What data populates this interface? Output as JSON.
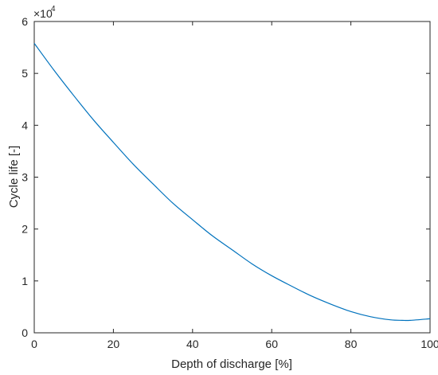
{
  "chart_data": {
    "type": "line",
    "xlabel": "Depth of discharge [%]",
    "ylabel": "Cycle life [-]",
    "xlim": [
      0,
      100
    ],
    "ylim": [
      0,
      6
    ],
    "y_exponent_base": "×10",
    "y_exponent_power": "4",
    "grid": false,
    "xticks": [
      "0",
      "20",
      "40",
      "60",
      "80",
      "100"
    ],
    "yticks": [
      "0",
      "1",
      "2",
      "3",
      "4",
      "5",
      "6"
    ],
    "series": [
      {
        "color": "#0072BD",
        "x": [
          0,
          5,
          10,
          15,
          20,
          25,
          30,
          35,
          40,
          45,
          50,
          55,
          60,
          65,
          70,
          75,
          80,
          85,
          90,
          93,
          95,
          100
        ],
        "y": [
          5.58,
          5.06,
          4.57,
          4.1,
          3.67,
          3.25,
          2.87,
          2.5,
          2.18,
          1.87,
          1.6,
          1.33,
          1.1,
          0.9,
          0.71,
          0.55,
          0.41,
          0.31,
          0.25,
          0.24,
          0.24,
          0.27
        ]
      }
    ]
  }
}
